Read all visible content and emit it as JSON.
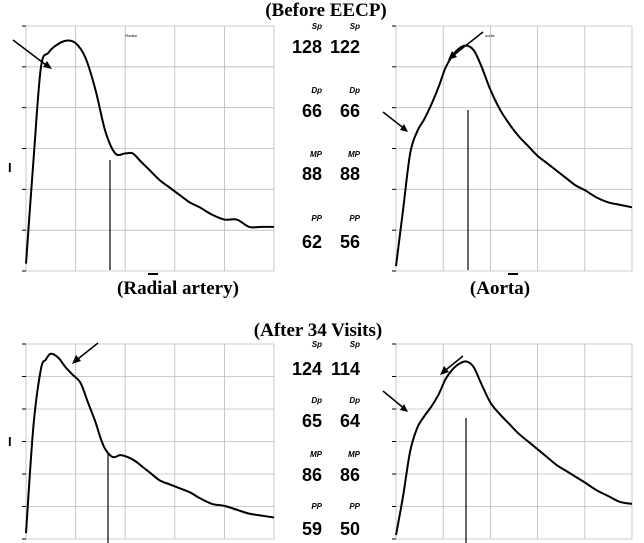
{
  "headings": {
    "before": "(Before EECP)",
    "after": "(After 34 Visits)",
    "radial_label": "(Radial artery)",
    "aorta_label": "(Aorta)"
  },
  "small_titles": {
    "radial": "Radial",
    "aortic": "aortic"
  },
  "y_axis_mark": "I",
  "colors": {
    "curve": "#000000",
    "grid": "#bbbbbb",
    "background": "#ffffff"
  },
  "values": {
    "before": {
      "radial": {
        "sp_label": "Sp",
        "sp": "128",
        "dp_label": "Dp",
        "dp": "66",
        "mp_label": "MP",
        "mp": "88",
        "pp_label": "PP",
        "pp": "62"
      },
      "aorta": {
        "sp_label": "Sp",
        "sp": "122",
        "dp_label": "Dp",
        "dp": "66",
        "mp_label": "MP",
        "mp": "88",
        "pp_label": "PP",
        "pp": "56"
      }
    },
    "after": {
      "radial": {
        "sp_label": "Sp",
        "sp": "124",
        "dp_label": "Dp",
        "dp": "65",
        "mp_label": "MP",
        "mp": "86",
        "pp_label": "PP",
        "pp": "59"
      },
      "aorta": {
        "sp_label": "Sp",
        "sp": "114",
        "dp_label": "Dp",
        "dp": "64",
        "mp_label": "MP",
        "mp": "86",
        "pp_label": "PP",
        "pp": "50"
      }
    }
  },
  "chart_data": [
    {
      "type": "line",
      "title": "Radial",
      "series": [
        {
          "x": [
            0,
            3,
            6,
            9,
            12,
            16,
            20,
            24,
            28,
            32,
            36,
            40,
            43,
            46,
            50,
            54,
            58,
            62,
            66,
            70,
            75,
            80,
            85,
            90,
            95,
            100
          ],
          "y": [
            3,
            45,
            83,
            89,
            92,
            94,
            93,
            87,
            74,
            57,
            48,
            48,
            48,
            45,
            41,
            37,
            34,
            31,
            28,
            26,
            23,
            21,
            21,
            18,
            18,
            18
          ]
        }
      ]
    },
    {
      "type": "line",
      "title": "aortic",
      "series": [
        {
          "x": [
            0,
            3,
            6,
            9,
            12,
            15,
            18,
            21,
            24,
            27,
            30,
            33,
            36,
            40,
            44,
            48,
            52,
            56,
            60,
            64,
            68,
            72,
            76,
            80,
            85,
            90,
            95,
            100
          ],
          "y": [
            2,
            25,
            48,
            57,
            62,
            68,
            75,
            83,
            88,
            91,
            92,
            90,
            84,
            74,
            66,
            60,
            55,
            51,
            47,
            44,
            41,
            38,
            35,
            33,
            30,
            28,
            27,
            26
          ]
        }
      ]
    },
    {
      "type": "line",
      "series": [
        {
          "x": [
            0,
            3,
            6,
            8,
            10,
            13,
            16,
            19,
            22,
            25,
            28,
            30,
            32,
            35,
            38,
            41,
            44,
            47,
            50,
            54,
            58,
            62,
            66,
            70,
            75,
            80,
            85,
            90,
            95,
            100
          ],
          "y": [
            3,
            58,
            87,
            92,
            95,
            93,
            88,
            84,
            80,
            70,
            60,
            52,
            46,
            42,
            43,
            42,
            40,
            37,
            34,
            30,
            28,
            26,
            24,
            21,
            18,
            17,
            15,
            13,
            12,
            11
          ]
        }
      ]
    },
    {
      "type": "line",
      "series": [
        {
          "x": [
            0,
            3,
            6,
            9,
            12,
            15,
            18,
            21,
            24,
            27,
            30,
            33,
            36,
            40,
            44,
            48,
            52,
            56,
            60,
            64,
            68,
            72,
            76,
            80,
            85,
            90,
            95,
            100
          ],
          "y": [
            2,
            22,
            45,
            57,
            63,
            68,
            74,
            82,
            87,
            90,
            91,
            88,
            80,
            70,
            64,
            59,
            54,
            50,
            46,
            42,
            38,
            35,
            32,
            29,
            25,
            22,
            19,
            18
          ]
        }
      ]
    }
  ]
}
